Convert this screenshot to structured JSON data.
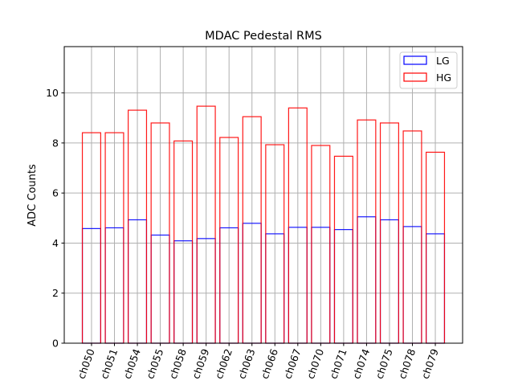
{
  "chart_data": {
    "type": "bar",
    "title": "MDAC Pedestal RMS",
    "xlabel": "",
    "ylabel": "ADC Counts",
    "categories": [
      "ch050",
      "ch051",
      "ch054",
      "ch055",
      "ch058",
      "ch059",
      "ch062",
      "ch063",
      "ch066",
      "ch067",
      "ch070",
      "ch071",
      "ch074",
      "ch075",
      "ch078",
      "ch079"
    ],
    "series": [
      {
        "name": "LG",
        "color": "#0000ff",
        "values": [
          4.58,
          4.61,
          4.93,
          4.32,
          4.09,
          4.18,
          4.61,
          4.79,
          4.37,
          4.63,
          4.63,
          4.54,
          5.05,
          4.93,
          4.66,
          4.37
        ]
      },
      {
        "name": "HG",
        "color": "#ff0000",
        "values": [
          8.41,
          8.41,
          9.31,
          8.8,
          8.08,
          9.47,
          8.22,
          9.05,
          7.93,
          9.4,
          7.9,
          7.47,
          8.92,
          8.8,
          8.48,
          7.63
        ]
      }
    ],
    "ylim": [
      0,
      11.85
    ],
    "yticks": [
      "0",
      "2",
      "4",
      "6",
      "8",
      "10"
    ],
    "grid": true,
    "legend": "top-right",
    "bar_fill": "none",
    "xtick_rotation": 70
  }
}
